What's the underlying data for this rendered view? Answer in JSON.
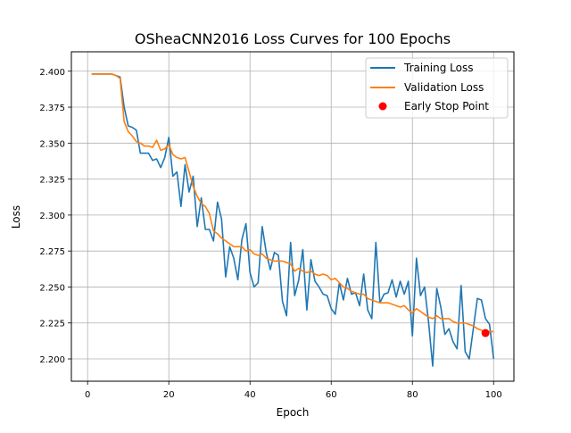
{
  "chart_data": {
    "type": "line",
    "title": "OSheaCNN2016 Loss Curves for 100 Epochs",
    "xlabel": "Epoch",
    "ylabel": "Loss",
    "xlim": [
      -4,
      105
    ],
    "ylim": [
      2.1845,
      2.4135
    ],
    "xticks": [
      0,
      20,
      40,
      60,
      80,
      100
    ],
    "xtick_labels": [
      "0",
      "20",
      "40",
      "60",
      "80",
      "100"
    ],
    "yticks": [
      2.2,
      2.225,
      2.25,
      2.275,
      2.3,
      2.325,
      2.35,
      2.375,
      2.4
    ],
    "ytick_labels": [
      "2.200",
      "2.225",
      "2.250",
      "2.275",
      "2.300",
      "2.325",
      "2.350",
      "2.375",
      "2.400"
    ],
    "grid": true,
    "legend_position": "top-right",
    "x": [
      1,
      2,
      3,
      4,
      5,
      6,
      7,
      8,
      9,
      10,
      11,
      12,
      13,
      14,
      15,
      16,
      17,
      18,
      19,
      20,
      21,
      22,
      23,
      24,
      25,
      26,
      27,
      28,
      29,
      30,
      31,
      32,
      33,
      34,
      35,
      36,
      37,
      38,
      39,
      40,
      41,
      42,
      43,
      44,
      45,
      46,
      47,
      48,
      49,
      50,
      51,
      52,
      53,
      54,
      55,
      56,
      57,
      58,
      59,
      60,
      61,
      62,
      63,
      64,
      65,
      66,
      67,
      68,
      69,
      70,
      71,
      72,
      73,
      74,
      75,
      76,
      77,
      78,
      79,
      80,
      81,
      82,
      83,
      84,
      85,
      86,
      87,
      88,
      89,
      90,
      91,
      92,
      93,
      94,
      95,
      96,
      97,
      98,
      99,
      100
    ],
    "series": [
      {
        "name": "Training Loss",
        "color": "#1f77b4",
        "values": [
          2.398,
          2.398,
          2.398,
          2.398,
          2.398,
          2.398,
          2.397,
          2.396,
          2.375,
          2.362,
          2.361,
          2.359,
          2.343,
          2.343,
          2.343,
          2.338,
          2.339,
          2.333,
          2.34,
          2.354,
          2.327,
          2.33,
          2.306,
          2.335,
          2.316,
          2.327,
          2.292,
          2.312,
          2.29,
          2.29,
          2.282,
          2.309,
          2.297,
          2.257,
          2.278,
          2.27,
          2.255,
          2.283,
          2.294,
          2.26,
          2.25,
          2.253,
          2.292,
          2.274,
          2.262,
          2.274,
          2.272,
          2.24,
          2.23,
          2.281,
          2.244,
          2.255,
          2.276,
          2.234,
          2.269,
          2.254,
          2.25,
          2.245,
          2.244,
          2.235,
          2.231,
          2.253,
          2.241,
          2.256,
          2.245,
          2.246,
          2.237,
          2.259,
          2.234,
          2.228,
          2.281,
          2.239,
          2.245,
          2.246,
          2.255,
          2.243,
          2.254,
          2.245,
          2.254,
          2.216,
          2.27,
          2.244,
          2.25,
          2.225,
          2.195,
          2.249,
          2.236,
          2.217,
          2.221,
          2.212,
          2.207,
          2.251,
          2.205,
          2.2,
          2.221,
          2.242,
          2.241,
          2.228,
          2.224,
          2.2
        ]
      },
      {
        "name": "Validation Loss",
        "color": "#ff7f0e",
        "values": [
          2.398,
          2.398,
          2.398,
          2.398,
          2.398,
          2.398,
          2.397,
          2.395,
          2.365,
          2.358,
          2.355,
          2.351,
          2.35,
          2.348,
          2.348,
          2.347,
          2.352,
          2.345,
          2.346,
          2.349,
          2.342,
          2.34,
          2.339,
          2.34,
          2.33,
          2.32,
          2.313,
          2.308,
          2.306,
          2.301,
          2.289,
          2.287,
          2.284,
          2.282,
          2.28,
          2.278,
          2.278,
          2.278,
          2.275,
          2.276,
          2.273,
          2.272,
          2.273,
          2.27,
          2.269,
          2.268,
          2.268,
          2.268,
          2.267,
          2.266,
          2.261,
          2.263,
          2.261,
          2.26,
          2.261,
          2.259,
          2.258,
          2.259,
          2.258,
          2.255,
          2.256,
          2.253,
          2.25,
          2.249,
          2.247,
          2.246,
          2.245,
          2.245,
          2.242,
          2.241,
          2.24,
          2.239,
          2.239,
          2.239,
          2.238,
          2.237,
          2.236,
          2.237,
          2.234,
          2.232,
          2.235,
          2.233,
          2.231,
          2.229,
          2.228,
          2.23,
          2.228,
          2.228,
          2.228,
          2.226,
          2.225,
          2.225,
          2.225,
          2.224,
          2.223,
          2.221,
          2.22,
          2.219,
          2.219,
          2.219
        ]
      }
    ],
    "markers": [
      {
        "name": "Early Stop Point",
        "color": "#ff0000",
        "x": 98,
        "y": 2.218
      }
    ]
  }
}
